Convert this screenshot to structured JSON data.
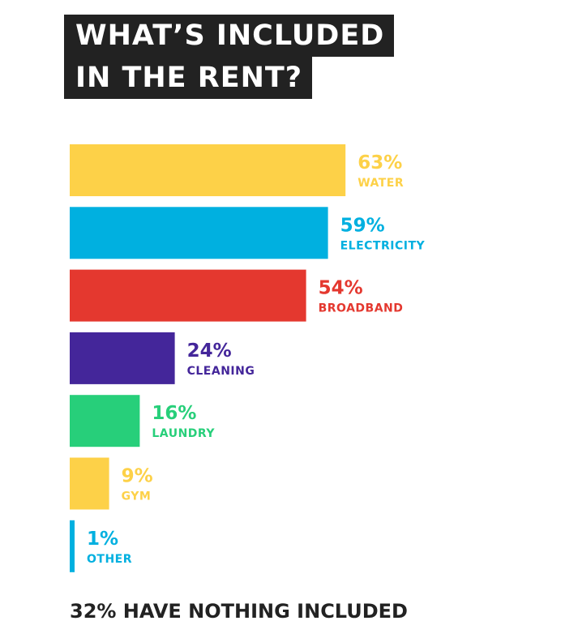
{
  "title": {
    "line1": "WHAT’S INCLUDED",
    "line2": "IN THE RENT?"
  },
  "footer_note": "32% HAVE NOTHING INCLUDED",
  "chart_data": {
    "type": "bar",
    "orientation": "horizontal",
    "categories": [
      "WATER",
      "ELECTRICITY",
      "BROADBAND",
      "CLEANING",
      "LAUNDRY",
      "GYM",
      "OTHER"
    ],
    "values": [
      63,
      59,
      54,
      24,
      16,
      9,
      1
    ],
    "value_labels": [
      "63%",
      "59%",
      "54%",
      "24%",
      "16%",
      "9%",
      "1%"
    ],
    "unit": "%",
    "colors": [
      "#fdd148",
      "#00b0e0",
      "#e4382f",
      "#44269a",
      "#27cf7a",
      "#fdd148",
      "#00b0e0"
    ],
    "xlim": [
      0,
      100
    ],
    "grid": false
  }
}
